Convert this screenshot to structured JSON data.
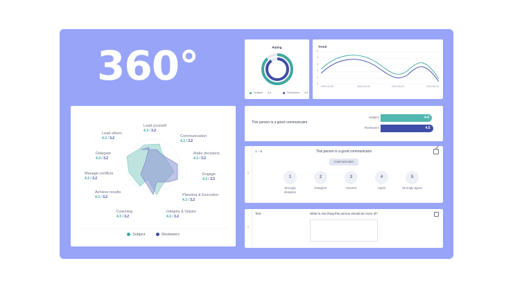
{
  "hero_title": "360°",
  "rating": {
    "title": "Rating",
    "subject_label": "Subject",
    "subject_value": "4.4",
    "reviewers_label": "Reviewers",
    "reviewers_value": "4.5",
    "colors": {
      "subject": "#3fa8a1",
      "reviewers": "#3f4da8"
    }
  },
  "trend": {
    "title": "Trend",
    "y_ticks": [
      "5",
      "4",
      "3",
      "2",
      "1",
      "0"
    ],
    "x_ticks": [
      "2022-02-28",
      "2022-04-18",
      "2022-06-29",
      "2022-08-10"
    ]
  },
  "bars": {
    "question": "This person is a good communicator",
    "subject_label": "Subject",
    "subject_value": "4.4",
    "subject_fraction": 0.88,
    "reviewers_label": "Reviewers",
    "reviewers_value": "4.5",
    "reviewers_fraction": 0.9
  },
  "likert": {
    "scale_label": "1 – 5",
    "question": "This person is a good communicator",
    "tag": "Communication",
    "options": [
      {
        "num": "1",
        "label": "Strongly disagree"
      },
      {
        "num": "2",
        "label": "Disagree"
      },
      {
        "num": "3",
        "label": "Neutral"
      },
      {
        "num": "4",
        "label": "Agree"
      },
      {
        "num": "5",
        "label": "Strongly agree"
      }
    ]
  },
  "text_question": {
    "type_label": "Text",
    "question": "What is one thing this person should do more of?"
  },
  "radar": {
    "separator": " / ",
    "axes": [
      {
        "name": "Lead yourself",
        "subject": "4.3",
        "reviewers": "3.2"
      },
      {
        "name": "Communication",
        "subject": "4.3",
        "reviewers": "3.2"
      },
      {
        "name": "Make decisions",
        "subject": "4.3",
        "reviewers": "3.2"
      },
      {
        "name": "Engage",
        "subject": "4.3",
        "reviewers": "3.2"
      },
      {
        "name": "Planning & Execution",
        "subject": "4.3",
        "reviewers": "3.2"
      },
      {
        "name": "Integrity & Values",
        "subject": "4.3",
        "reviewers": "3.2"
      },
      {
        "name": "Coaching",
        "subject": "4.3",
        "reviewers": "3.2"
      },
      {
        "name": "Achieve results",
        "subject": "4.3",
        "reviewers": "3.2"
      },
      {
        "name": "Manage conflicts",
        "subject": "4.3",
        "reviewers": "3.2"
      },
      {
        "name": "Delegate",
        "subject": "4.3",
        "reviewers": "3.2"
      },
      {
        "name": "Lead others",
        "subject": "4.3",
        "reviewers": "3.2"
      }
    ],
    "legend": {
      "subject": "Subject",
      "reviewers": "Reviewers"
    }
  }
}
